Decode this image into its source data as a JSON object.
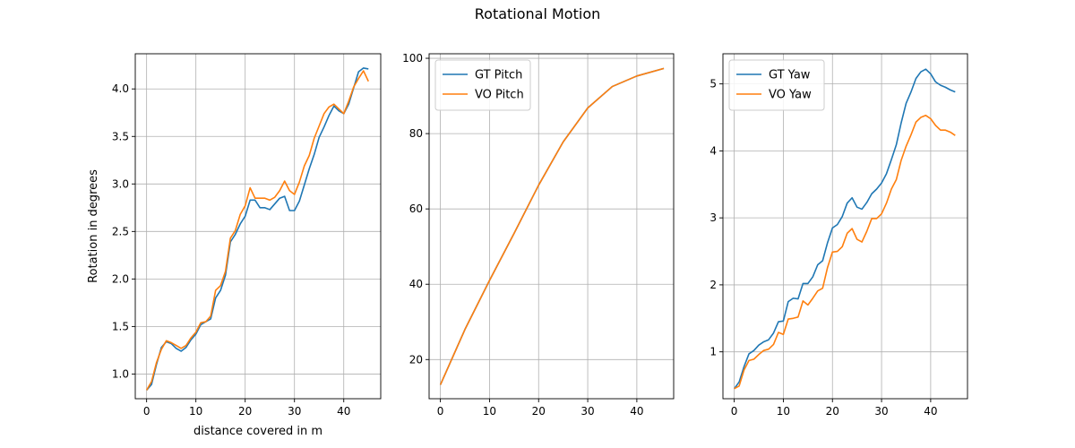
{
  "figure": {
    "title": "Rotational Motion"
  },
  "colors": {
    "series1": "#1f77b4",
    "series2": "#ff7f0e",
    "grid": "#b0b0b0",
    "axes": "#000000"
  },
  "chart_data": [
    {
      "type": "line",
      "title": "",
      "xlabel": "distance covered in m",
      "ylabel": "Rotation in degrees",
      "xlim": [
        -2.3,
        47.5
      ],
      "ylim": [
        0.74,
        4.37
      ],
      "xticks": [
        0,
        10,
        20,
        30,
        40
      ],
      "yticks": [
        1.0,
        1.5,
        2.0,
        2.5,
        3.0,
        3.5,
        4.0
      ],
      "ytick_labels": [
        "1.0",
        "1.5",
        "2.0",
        "2.5",
        "3.0",
        "3.5",
        "4.0"
      ],
      "grid": true,
      "legend": "none",
      "series": [
        {
          "color": "#1f77b4",
          "x": [
            0,
            1,
            2,
            3,
            4,
            5,
            6,
            7,
            8,
            9,
            10,
            11,
            12,
            13,
            14,
            15,
            16,
            17,
            18,
            19,
            20,
            21,
            22,
            23,
            24,
            25,
            26,
            27,
            28,
            29,
            30,
            31,
            32,
            33,
            34,
            35,
            36,
            37,
            38,
            39,
            40,
            41,
            42,
            43,
            44,
            45
          ],
          "y": [
            0.83,
            0.89,
            1.1,
            1.28,
            1.34,
            1.32,
            1.27,
            1.24,
            1.28,
            1.36,
            1.42,
            1.52,
            1.55,
            1.58,
            1.8,
            1.88,
            2.04,
            2.39,
            2.47,
            2.58,
            2.66,
            2.83,
            2.83,
            2.75,
            2.75,
            2.73,
            2.79,
            2.85,
            2.87,
            2.72,
            2.72,
            2.82,
            2.99,
            3.16,
            3.31,
            3.49,
            3.6,
            3.72,
            3.82,
            3.77,
            3.74,
            3.84,
            4.01,
            4.18,
            4.22,
            4.21
          ]
        },
        {
          "color": "#ff7f0e",
          "x": [
            0,
            1,
            2,
            3,
            4,
            5,
            6,
            7,
            8,
            9,
            10,
            11,
            12,
            13,
            14,
            15,
            16,
            17,
            18,
            19,
            20,
            21,
            22,
            23,
            24,
            25,
            26,
            27,
            28,
            29,
            30,
            31,
            32,
            33,
            34,
            35,
            36,
            37,
            38,
            39,
            40,
            41,
            42,
            43,
            44,
            45
          ],
          "y": [
            0.83,
            0.92,
            1.12,
            1.26,
            1.35,
            1.33,
            1.3,
            1.27,
            1.3,
            1.38,
            1.44,
            1.54,
            1.55,
            1.61,
            1.88,
            1.93,
            2.08,
            2.43,
            2.51,
            2.68,
            2.77,
            2.96,
            2.85,
            2.85,
            2.85,
            2.83,
            2.86,
            2.93,
            3.03,
            2.93,
            2.89,
            3.02,
            3.19,
            3.3,
            3.48,
            3.61,
            3.74,
            3.81,
            3.84,
            3.79,
            3.74,
            3.87,
            4.02,
            4.11,
            4.19,
            4.08
          ]
        }
      ]
    },
    {
      "type": "line",
      "title": "",
      "xlabel": "",
      "ylabel": "",
      "xlim": [
        -2.3,
        47.5
      ],
      "ylim": [
        9.6,
        101.2
      ],
      "xticks": [
        0,
        10,
        20,
        30,
        40
      ],
      "yticks": [
        20,
        40,
        60,
        80,
        100
      ],
      "ytick_labels": [
        "20",
        "40",
        "60",
        "80",
        "100"
      ],
      "grid": true,
      "legend": "upper-left",
      "series": [
        {
          "name": "GT Pitch",
          "color": "#1f77b4",
          "x": [
            0,
            5,
            10,
            15,
            20,
            25,
            30,
            35,
            40,
            45.5
          ],
          "y": [
            13.3,
            28.0,
            41.0,
            53.5,
            66.3,
            77.8,
            86.8,
            92.5,
            95.3,
            97.3
          ]
        },
        {
          "name": "VO Pitch",
          "color": "#ff7f0e",
          "x": [
            0,
            5,
            10,
            15,
            20,
            25,
            30,
            35,
            40,
            45.5
          ],
          "y": [
            13.3,
            28.0,
            41.0,
            53.5,
            66.3,
            77.8,
            86.8,
            92.5,
            95.3,
            97.3
          ]
        }
      ]
    },
    {
      "type": "line",
      "title": "",
      "xlabel": "",
      "ylabel": "",
      "xlim": [
        -2.3,
        47.5
      ],
      "ylim": [
        0.3,
        5.45
      ],
      "xticks": [
        0,
        10,
        20,
        30,
        40
      ],
      "yticks": [
        1,
        2,
        3,
        4,
        5
      ],
      "ytick_labels": [
        "1",
        "2",
        "3",
        "4",
        "5"
      ],
      "grid": true,
      "legend": "upper-left",
      "series": [
        {
          "name": "GT Yaw",
          "color": "#1f77b4",
          "x": [
            0,
            1,
            2,
            3,
            4,
            5,
            6,
            7,
            8,
            9,
            10,
            11,
            12,
            13,
            14,
            15,
            16,
            17,
            18,
            19,
            20,
            21,
            22,
            23,
            24,
            25,
            26,
            27,
            28,
            29,
            30,
            31,
            32,
            33,
            34,
            35,
            36,
            37,
            38,
            39,
            40,
            41,
            42,
            43,
            44,
            45
          ],
          "y": [
            0.45,
            0.55,
            0.78,
            0.97,
            1.02,
            1.1,
            1.15,
            1.18,
            1.28,
            1.45,
            1.46,
            1.75,
            1.8,
            1.79,
            2.02,
            2.02,
            2.12,
            2.3,
            2.36,
            2.63,
            2.85,
            2.9,
            3.02,
            3.22,
            3.3,
            3.16,
            3.13,
            3.23,
            3.36,
            3.43,
            3.52,
            3.66,
            3.87,
            4.09,
            4.42,
            4.71,
            4.88,
            5.08,
            5.18,
            5.22,
            5.15,
            5.03,
            4.98,
            4.95,
            4.91,
            4.88
          ]
        },
        {
          "name": "VO Yaw",
          "color": "#ff7f0e",
          "x": [
            0,
            1,
            2,
            3,
            4,
            5,
            6,
            7,
            8,
            9,
            10,
            11,
            12,
            13,
            14,
            15,
            16,
            17,
            18,
            19,
            20,
            21,
            22,
            23,
            24,
            25,
            26,
            27,
            28,
            29,
            30,
            31,
            32,
            33,
            34,
            35,
            36,
            37,
            38,
            39,
            40,
            41,
            42,
            43,
            44,
            45
          ],
          "y": [
            0.45,
            0.49,
            0.73,
            0.87,
            0.89,
            0.96,
            1.02,
            1.04,
            1.11,
            1.29,
            1.26,
            1.49,
            1.5,
            1.52,
            1.76,
            1.7,
            1.8,
            1.91,
            1.95,
            2.26,
            2.49,
            2.5,
            2.57,
            2.77,
            2.84,
            2.68,
            2.64,
            2.8,
            2.99,
            2.99,
            3.06,
            3.22,
            3.43,
            3.57,
            3.86,
            4.07,
            4.24,
            4.43,
            4.5,
            4.53,
            4.48,
            4.38,
            4.31,
            4.31,
            4.28,
            4.23
          ]
        }
      ]
    }
  ]
}
